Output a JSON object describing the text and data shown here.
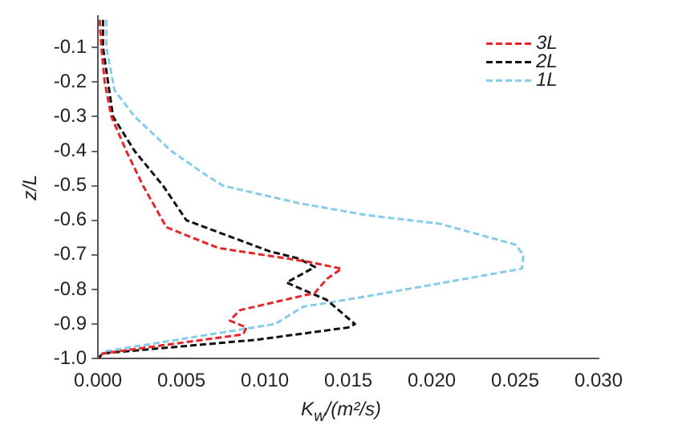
{
  "chart_data": {
    "type": "line",
    "xlabel": "K$_{w}$/(m²/s)",
    "ylabel": "z/L",
    "xlim": [
      0,
      0.03
    ],
    "xticks": [
      {
        "value": 0,
        "label": "0.000"
      },
      {
        "value": 0.005,
        "label": "0.005"
      },
      {
        "value": 0.01,
        "label": "0.010"
      },
      {
        "value": 0.015,
        "label": "0.015"
      },
      {
        "value": 0.02,
        "label": "0.020"
      },
      {
        "value": 0.025,
        "label": "0.025"
      },
      {
        "value": 0.03,
        "label": "0.030"
      }
    ],
    "ylim": [
      -1.0,
      -0.01
    ],
    "yticks": [
      -0.1,
      -0.2,
      -0.3,
      -0.4,
      -0.5,
      -0.6,
      -0.7,
      -0.8,
      -0.9,
      {
        "value": -1.0,
        "label": "-1.0"
      }
    ],
    "legend": "top right",
    "grid": false,
    "marker": "none",
    "line_style": "dashed",
    "series": [
      {
        "name": "3L",
        "color": "#e8262a",
        "type": "line",
        "x": [
          0.0001,
          0.0002,
          0.0004,
          0.0008,
          0.0017,
          0.0027,
          0.0041,
          0.0072,
          0.0126,
          0.0146,
          0.0137,
          0.013,
          0.0085,
          0.0079,
          0.0089,
          0.0087,
          0.0003,
          0
        ],
        "values": [
          -0.02,
          -0.1,
          -0.2,
          -0.3,
          -0.4,
          -0.5,
          -0.62,
          -0.68,
          -0.72,
          -0.74,
          -0.77,
          -0.81,
          -0.86,
          -0.89,
          -0.91,
          -0.93,
          -0.985,
          -1.0
        ]
      },
      {
        "name": "2L",
        "color": "#111111",
        "type": "line",
        "x": [
          0.0003,
          0.0003,
          0.0006,
          0.0009,
          0.0022,
          0.0039,
          0.0053,
          0.0103,
          0.012,
          0.013,
          0.0113,
          0.0137,
          0.0154,
          0.015,
          0.0096,
          0.0003,
          0
        ],
        "values": [
          -0.02,
          -0.1,
          -0.2,
          -0.3,
          -0.4,
          -0.5,
          -0.6,
          -0.69,
          -0.71,
          -0.735,
          -0.78,
          -0.83,
          -0.9,
          -0.91,
          -0.945,
          -0.985,
          -1.0
        ]
      },
      {
        "name": "1L",
        "color": "#87cce8",
        "type": "line",
        "x": [
          0.0005,
          0.0005,
          0.001,
          0.0022,
          0.0044,
          0.0065,
          0.0075,
          0.012,
          0.0161,
          0.0205,
          0.025,
          0.0255,
          0.0254,
          0.0161,
          0.0123,
          0.0106,
          0.0003,
          0
        ],
        "values": [
          -0.02,
          -0.1,
          -0.225,
          -0.3,
          -0.4,
          -0.47,
          -0.5,
          -0.55,
          -0.585,
          -0.61,
          -0.67,
          -0.7,
          -0.74,
          -0.82,
          -0.85,
          -0.9,
          -0.98,
          -1.0
        ]
      }
    ]
  }
}
